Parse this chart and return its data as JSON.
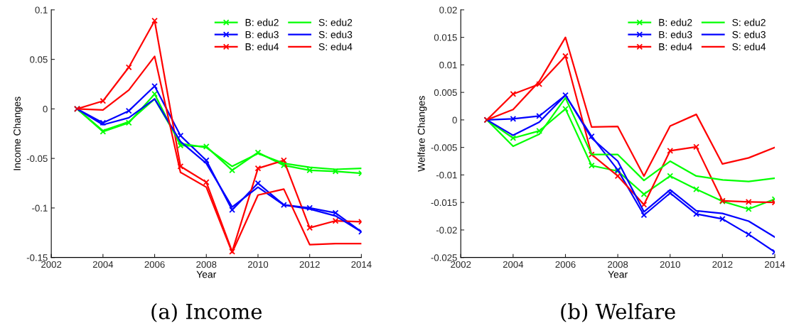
{
  "chart_data": [
    {
      "type": "line",
      "title": "(a) Income",
      "xlabel": "Year",
      "ylabel": "Income Changes",
      "x": [
        2003,
        2004,
        2005,
        2006,
        2007,
        2008,
        2009,
        2010,
        2011,
        2012,
        2013,
        2014
      ],
      "xlim": [
        2002,
        2014
      ],
      "xticks": [
        2002,
        2004,
        2006,
        2008,
        2010,
        2012,
        2014
      ],
      "ylim": [
        -0.15,
        0.1
      ],
      "yticks": [
        -0.15,
        -0.1,
        -0.05,
        0,
        0.05,
        0.1
      ],
      "grid": false,
      "legend": "top right",
      "series": [
        {
          "name": "B: edu2",
          "color": "#00ff00",
          "marker": "cross",
          "values": [
            0,
            -0.023,
            -0.014,
            0.015,
            -0.037,
            -0.038,
            -0.062,
            -0.044,
            -0.057,
            -0.062,
            -0.063,
            -0.065
          ]
        },
        {
          "name": "B: edu3",
          "color": "#0000ff",
          "marker": "cross",
          "values": [
            0,
            -0.014,
            -0.002,
            0.023,
            -0.027,
            -0.052,
            -0.102,
            -0.075,
            -0.097,
            -0.1,
            -0.105,
            -0.124
          ]
        },
        {
          "name": "B: edu4",
          "color": "#ff0000",
          "marker": "cross",
          "values": [
            0,
            0.008,
            0.042,
            0.089,
            -0.058,
            -0.074,
            -0.144,
            -0.06,
            -0.052,
            -0.12,
            -0.113,
            -0.114
          ]
        },
        {
          "name": "S: edu2",
          "color": "#00ff00",
          "marker": "none",
          "values": [
            0,
            -0.022,
            -0.013,
            0.01,
            -0.035,
            -0.039,
            -0.058,
            -0.045,
            -0.055,
            -0.059,
            -0.061,
            -0.06
          ]
        },
        {
          "name": "S: edu3",
          "color": "#0000ff",
          "marker": "none",
          "values": [
            0,
            -0.016,
            -0.009,
            0.01,
            -0.033,
            -0.055,
            -0.099,
            -0.079,
            -0.097,
            -0.101,
            -0.108,
            -0.124
          ]
        },
        {
          "name": "S: edu4",
          "color": "#ff0000",
          "marker": "none",
          "values": [
            0,
            -0.001,
            0.019,
            0.053,
            -0.064,
            -0.079,
            -0.145,
            -0.087,
            -0.081,
            -0.137,
            -0.136,
            -0.136
          ]
        }
      ]
    },
    {
      "type": "line",
      "title": "(b) Welfare",
      "xlabel": "Year",
      "ylabel": "Welfare Changes",
      "x": [
        2003,
        2004,
        2005,
        2006,
        2007,
        2008,
        2009,
        2010,
        2011,
        2012,
        2013,
        2014
      ],
      "xlim": [
        2002,
        2014
      ],
      "xticks": [
        2002,
        2004,
        2006,
        2008,
        2010,
        2012,
        2014
      ],
      "ylim": [
        -0.025,
        0.02
      ],
      "yticks": [
        -0.025,
        -0.02,
        -0.015,
        -0.01,
        -0.005,
        0,
        0.005,
        0.01,
        0.015,
        0.02
      ],
      "grid": false,
      "legend": "top right",
      "series": [
        {
          "name": "B: edu2",
          "color": "#00ff00",
          "marker": "cross",
          "values": [
            0,
            -0.0033,
            -0.002,
            0.002,
            -0.0083,
            -0.0093,
            -0.0135,
            -0.0102,
            -0.0126,
            -0.0148,
            -0.0162,
            -0.0144
          ]
        },
        {
          "name": "B: edu3",
          "color": "#0000ff",
          "marker": "cross",
          "values": [
            0,
            0.0002,
            0.0007,
            0.0045,
            -0.003,
            -0.0091,
            -0.0173,
            -0.0133,
            -0.0171,
            -0.018,
            -0.0208,
            -0.024
          ]
        },
        {
          "name": "B: edu4",
          "color": "#ff0000",
          "marker": "cross",
          "values": [
            0,
            0.0047,
            0.0065,
            0.0116,
            -0.0063,
            -0.0102,
            -0.0154,
            -0.0056,
            -0.0049,
            -0.0147,
            -0.0149,
            -0.015
          ]
        },
        {
          "name": "S: edu2",
          "color": "#00ff00",
          "marker": "none",
          "values": [
            0,
            -0.0048,
            -0.0026,
            0.004,
            -0.0063,
            -0.0063,
            -0.011,
            -0.0075,
            -0.0102,
            -0.0109,
            -0.0112,
            -0.0106
          ]
        },
        {
          "name": "S: edu3",
          "color": "#0000ff",
          "marker": "none",
          "values": [
            0,
            -0.0028,
            -0.0004,
            0.0045,
            -0.0033,
            -0.0075,
            -0.0167,
            -0.0127,
            -0.0165,
            -0.017,
            -0.0184,
            -0.0213
          ]
        },
        {
          "name": "S: edu4",
          "color": "#ff0000",
          "marker": "none",
          "values": [
            0,
            0.0019,
            0.007,
            0.015,
            -0.0013,
            -0.0012,
            -0.0102,
            -0.0011,
            0.001,
            -0.008,
            -0.0069,
            -0.005
          ]
        }
      ]
    }
  ]
}
